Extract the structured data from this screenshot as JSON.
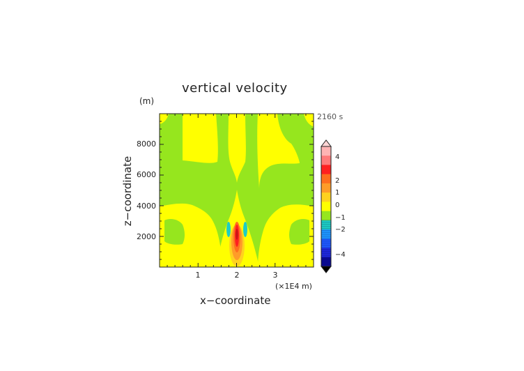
{
  "chart_data": {
    "type": "heatmap",
    "title": "vertical velocity",
    "xlabel": "x−coordinate",
    "ylabel": "z−coordinate",
    "x_unit_label": "(×1E4 m)",
    "y_unit_label": "(m)",
    "time_label": "2160 s",
    "x_ticks": [
      1,
      2,
      3
    ],
    "y_ticks": [
      2000,
      4000,
      6000,
      8000
    ],
    "xlim": [
      0,
      4
    ],
    "ylim": [
      0,
      10000
    ],
    "colorbar": {
      "ticks": [
        4,
        2,
        1,
        0,
        -1,
        -2,
        -4
      ],
      "tick_labels": [
        "4",
        "2",
        "1",
        "0",
        "−1",
        "−2",
        "−4"
      ],
      "range": [
        -5,
        5
      ],
      "colors_high": [
        "#ffb4b4",
        "#ff7a7a",
        "#ff2020",
        "#ff6e1e",
        "#ff9c28",
        "#ffd21e",
        "#ffff00"
      ],
      "colors_zero": "#96e61e",
      "colors_low": [
        "#1ecdc3",
        "#1e96ff",
        "#1e5aff",
        "#1e28dc",
        "#0a0a96"
      ]
    },
    "field_description": "Updraft core near x=2 (×1E4 m), maximum ~3 m/s around z=2000 m; weak downdrafts flank it near z=3000 m; alternating weak positive/zero bands elsewhere."
  }
}
